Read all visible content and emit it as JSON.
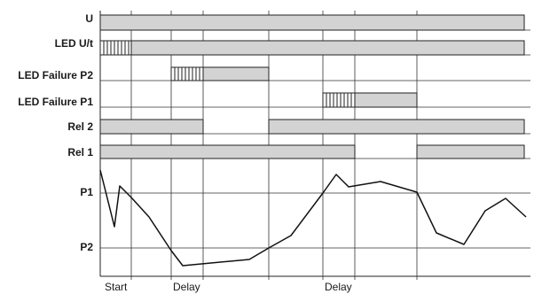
{
  "rows": {
    "u": "U",
    "led_ut": "LED U/t",
    "led_failure_p2": "LED Failure P2",
    "led_failure_p1": "LED Failure P1",
    "rel2": "Rel 2",
    "rel1": "Rel 1",
    "p1": "P1",
    "p2": "P2"
  },
  "time_axis": {
    "start": "Start",
    "delay1": "Delay",
    "delay2": "Delay"
  },
  "colors": {
    "bar_fill": "#d3d3d3",
    "line": "#222222"
  }
}
